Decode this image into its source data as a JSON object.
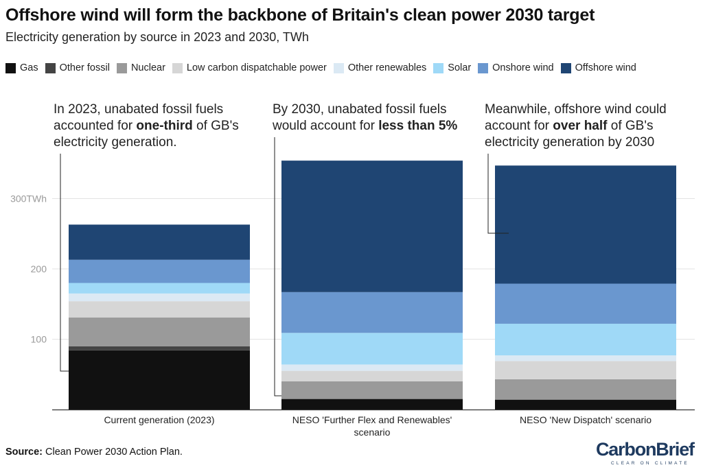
{
  "header": {
    "title": "Offshore wind will form the backbone of Britain's clean power 2030 target",
    "subtitle": "Electricity generation by source in 2023 and 2030, TWh"
  },
  "footer": {
    "source_label": "Source:",
    "source_text": " Clean Power 2030 Action Plan."
  },
  "logo": {
    "text": "CarbonBrief",
    "tagline": "CLEAR ON CLIMATE"
  },
  "annotations": [
    {
      "plain_before": "In 2023, unabated fossil fuels\naccounted for ",
      "bold": "one-third",
      "plain_after": " of GB's\nelectricity generation."
    },
    {
      "plain_before": "By 2030, unabated fossil fuels\nwould account for ",
      "bold": "less than 5%",
      "plain_after": ""
    },
    {
      "plain_before": "Meanwhile, offshore wind could\naccount for ",
      "bold": "over half",
      "plain_after": " of GB's\nelectricity generation by 2030"
    }
  ],
  "chart_data": {
    "type": "bar",
    "stacked": true,
    "title": "Offshore wind will form the backbone of Britain's clean power 2030 target",
    "subtitle": "Electricity generation by source in 2023 and 2030, TWh",
    "categories": [
      "Current generation (2023)",
      "NESO 'Further Flex and Renewables' scenario",
      "NESO 'New Dispatch' scenario"
    ],
    "ylim": [
      0,
      360
    ],
    "yticks": [
      100,
      200,
      300
    ],
    "ytick_labels": [
      "100",
      "200",
      "300TWh"
    ],
    "grid": true,
    "legend_position": "top",
    "series": [
      {
        "name": "Gas",
        "color": "#111111",
        "values": [
          84,
          15,
          14
        ]
      },
      {
        "name": "Other fossil",
        "color": "#444444",
        "values": [
          6,
          0,
          0
        ]
      },
      {
        "name": "Nuclear",
        "color": "#9a9a9a",
        "values": [
          41,
          25,
          29
        ]
      },
      {
        "name": "Low carbon dispatchable power",
        "color": "#d6d6d6",
        "values": [
          23,
          15,
          26
        ]
      },
      {
        "name": "Other renewables",
        "color": "#dbe9f4",
        "values": [
          11,
          9,
          8
        ]
      },
      {
        "name": "Solar",
        "color": "#9fd9f7",
        "values": [
          15,
          45,
          45
        ]
      },
      {
        "name": "Onshore wind",
        "color": "#6a97cf",
        "values": [
          33,
          58,
          57
        ]
      },
      {
        "name": "Offshore wind",
        "color": "#1f4573",
        "values": [
          50,
          187,
          168
        ]
      }
    ]
  }
}
